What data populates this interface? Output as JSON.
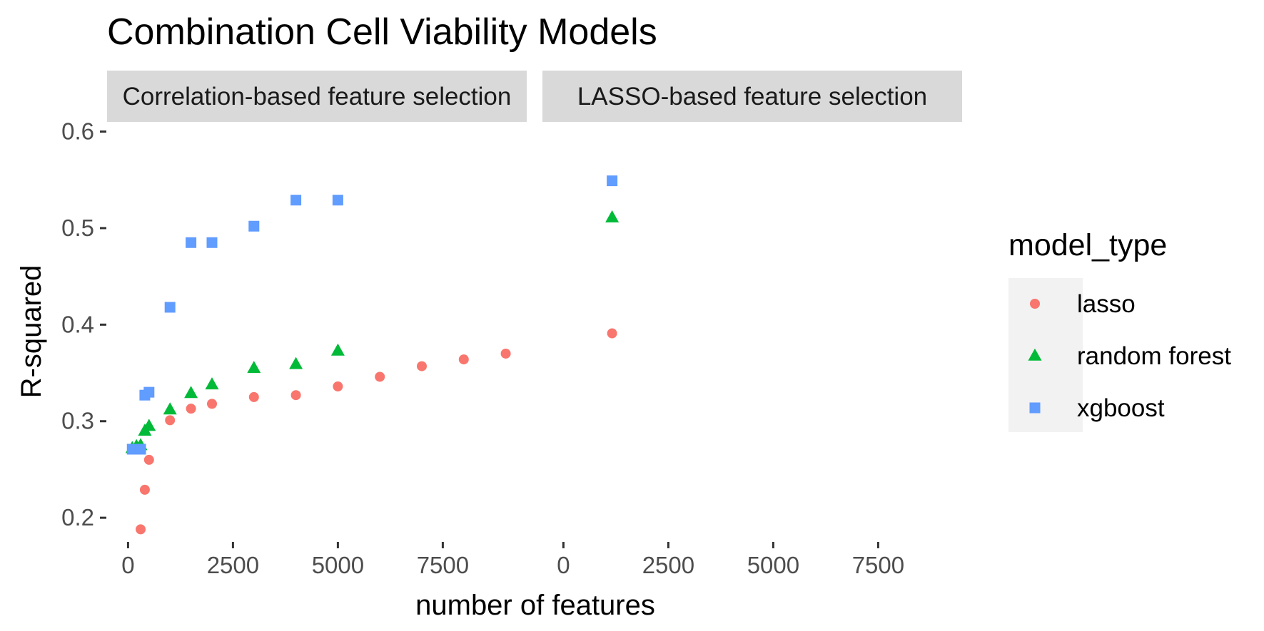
{
  "chart_data": {
    "type": "scatter",
    "title": "Combination Cell Viability Models",
    "xlabel": "number of features",
    "ylabel": "R-squared",
    "xlim": [
      -500,
      9500
    ],
    "ylim": [
      0.175,
      0.61
    ],
    "x_ticks": [
      0,
      2500,
      5000,
      7500
    ],
    "y_ticks": [
      0.2,
      0.3,
      0.4,
      0.5,
      0.6
    ],
    "grid": false,
    "legend": {
      "title": "model_type",
      "position": "right",
      "entries": [
        {
          "label": "lasso",
          "shape": "circle",
          "color": "#F8766D"
        },
        {
          "label": "random forest",
          "shape": "triangle",
          "color": "#00BA38"
        },
        {
          "label": "xgboost",
          "shape": "square",
          "color": "#619CFF"
        }
      ]
    },
    "panels": [
      {
        "strip": "Correlation-based feature selection",
        "series": [
          {
            "name": "lasso",
            "points": [
              [
                300,
                0.188
              ],
              [
                400,
                0.229
              ],
              [
                500,
                0.26
              ],
              [
                1000,
                0.301
              ],
              [
                1500,
                0.313
              ],
              [
                2000,
                0.318
              ],
              [
                3000,
                0.325
              ],
              [
                4000,
                0.327
              ],
              [
                5000,
                0.336
              ],
              [
                6000,
                0.346
              ],
              [
                7000,
                0.357
              ],
              [
                8000,
                0.364
              ],
              [
                9000,
                0.37
              ]
            ]
          },
          {
            "name": "random forest",
            "points": [
              [
                100,
                0.272
              ],
              [
                200,
                0.274
              ],
              [
                300,
                0.275
              ],
              [
                400,
                0.29
              ],
              [
                500,
                0.295
              ],
              [
                1000,
                0.312
              ],
              [
                1500,
                0.329
              ],
              [
                2000,
                0.338
              ],
              [
                3000,
                0.355
              ],
              [
                4000,
                0.359
              ],
              [
                5000,
                0.373
              ]
            ]
          },
          {
            "name": "xgboost",
            "points": [
              [
                100,
                0.271
              ],
              [
                200,
                0.271
              ],
              [
                300,
                0.271
              ],
              [
                400,
                0.327
              ],
              [
                500,
                0.33
              ],
              [
                1000,
                0.418
              ],
              [
                1500,
                0.485
              ],
              [
                2000,
                0.485
              ],
              [
                3000,
                0.502
              ],
              [
                4000,
                0.529
              ],
              [
                5000,
                0.529
              ]
            ]
          }
        ]
      },
      {
        "strip": "LASSO-based feature selection",
        "series": [
          {
            "name": "lasso",
            "points": [
              [
                1160,
                0.391
              ]
            ]
          },
          {
            "name": "random forest",
            "points": [
              [
                1160,
                0.511
              ]
            ]
          },
          {
            "name": "xgboost",
            "points": [
              [
                1160,
                0.549
              ]
            ]
          }
        ]
      }
    ]
  }
}
